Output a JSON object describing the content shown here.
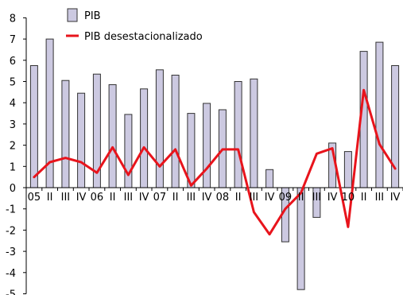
{
  "chart_data": {
    "type": "bar",
    "categories": [
      "05",
      "II",
      "III",
      "IV",
      "06",
      "II",
      "III",
      "IV",
      "07",
      "II",
      "III",
      "IV",
      "08",
      "II",
      "III",
      "IV",
      "09",
      "II",
      "III",
      "IV",
      "10",
      "II",
      "III",
      "IV"
    ],
    "ylim": [
      -5,
      8
    ],
    "yticks": [
      8,
      7,
      6,
      5,
      4,
      3,
      2,
      1,
      0,
      -1,
      -2,
      -3,
      -4,
      -5
    ],
    "grid": false,
    "legend_position": "top-left",
    "colors": {
      "bar_fill": "#ccc9e1",
      "bar_stroke": "#333333",
      "line": "#e8141c",
      "axis": "#000000"
    },
    "series": [
      {
        "name": "PIB",
        "type": "bar",
        "values": [
          5.75,
          7.0,
          5.05,
          4.45,
          5.35,
          4.85,
          3.45,
          4.65,
          5.55,
          5.3,
          3.5,
          3.97,
          3.67,
          5.0,
          5.12,
          0.85,
          -2.55,
          -4.8,
          -1.4,
          2.1,
          1.7,
          6.42,
          6.85,
          5.75
        ]
      },
      {
        "name": "PIB desestacionalizado",
        "type": "line",
        "values": [
          0.5,
          1.2,
          1.4,
          1.2,
          0.7,
          1.9,
          0.6,
          1.9,
          1.0,
          1.8,
          0.1,
          0.9,
          1.8,
          1.8,
          -1.15,
          -2.2,
          -1.0,
          -0.25,
          1.6,
          1.85,
          -1.85,
          4.6,
          2.05,
          0.9
        ]
      }
    ]
  }
}
